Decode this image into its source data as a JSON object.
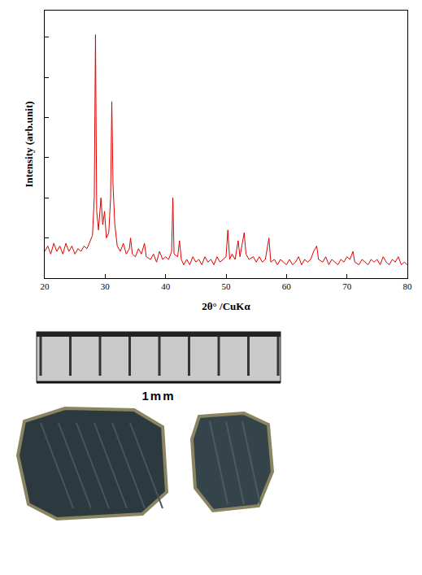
{
  "chart_data": {
    "type": "line",
    "x_label": "2θ° /CuKα",
    "y_label": "Intensity (arb.unit)",
    "xlim": [
      20,
      80
    ],
    "xticks": [
      20,
      30,
      40,
      50,
      60,
      70,
      80
    ],
    "ylim": [
      0,
      100
    ],
    "yticks": [
      0,
      15,
      30,
      45,
      60,
      75,
      90
    ],
    "tick_labels": "x",
    "grid": false,
    "color": "#e00000",
    "x": [
      20,
      20.5,
      21,
      21.5,
      22,
      22.5,
      23,
      23.5,
      24,
      24.5,
      25,
      25.5,
      26,
      26.5,
      27,
      27.5,
      27.9,
      28.2,
      28.4,
      28.6,
      28.9,
      29.3,
      29.6,
      29.9,
      30.2,
      30.6,
      30.9,
      31.1,
      31.3,
      31.6,
      32,
      32.5,
      33,
      33.5,
      34,
      34.2,
      34.5,
      35,
      35.5,
      36,
      36.5,
      36.8,
      37.5,
      38,
      38.5,
      39,
      39.5,
      40,
      40.5,
      41,
      41.2,
      41.4,
      42,
      42.3,
      42.6,
      43,
      43.5,
      44,
      44.5,
      45,
      45.5,
      46,
      46.5,
      47,
      47.5,
      48,
      48.5,
      49,
      49.5,
      50,
      50.3,
      50.6,
      51,
      51.5,
      52,
      52.3,
      53,
      53.3,
      53.8,
      54.5,
      55,
      55.5,
      56,
      56.5,
      57.1,
      57.4,
      58,
      58.5,
      59,
      59.5,
      60,
      60.5,
      61,
      61.5,
      62,
      62.5,
      63,
      63.5,
      64,
      64.5,
      65,
      65.3,
      66,
      66.5,
      67,
      67.5,
      68,
      68.5,
      69,
      69.5,
      70,
      70.5,
      71,
      71.3,
      72,
      72.5,
      73,
      73.5,
      74,
      74.5,
      75,
      75.5,
      76,
      76.5,
      77,
      77.5,
      78,
      78.5,
      79,
      79.5,
      80
    ],
    "values": [
      10,
      12,
      9,
      13,
      10,
      12,
      9,
      13,
      10,
      12,
      9,
      11,
      10,
      12,
      11,
      14,
      16,
      30,
      91,
      25,
      18,
      30,
      20,
      25,
      15,
      17,
      30,
      66,
      35,
      20,
      12,
      10,
      13,
      9,
      11,
      15,
      9,
      8,
      11,
      9,
      13,
      8,
      7,
      9,
      6,
      10,
      7,
      8,
      7,
      10,
      30,
      9,
      8,
      14,
      7,
      5,
      7,
      5,
      8,
      6,
      7,
      5,
      8,
      6,
      7,
      5,
      8,
      6,
      7,
      8,
      18,
      7,
      9,
      7,
      14,
      8,
      17,
      9,
      7,
      8,
      6,
      8,
      6,
      7,
      15,
      6,
      7,
      5,
      7,
      6,
      5,
      7,
      5,
      6,
      8,
      5,
      7,
      6,
      7,
      10,
      12,
      7,
      6,
      8,
      5,
      7,
      6,
      5,
      7,
      6,
      8,
      7,
      10,
      6,
      5,
      7,
      6,
      5,
      7,
      6,
      7,
      5,
      8,
      6,
      5,
      7,
      6,
      8,
      5,
      6,
      5
    ]
  },
  "photo": {
    "scale_label": "1mm"
  }
}
